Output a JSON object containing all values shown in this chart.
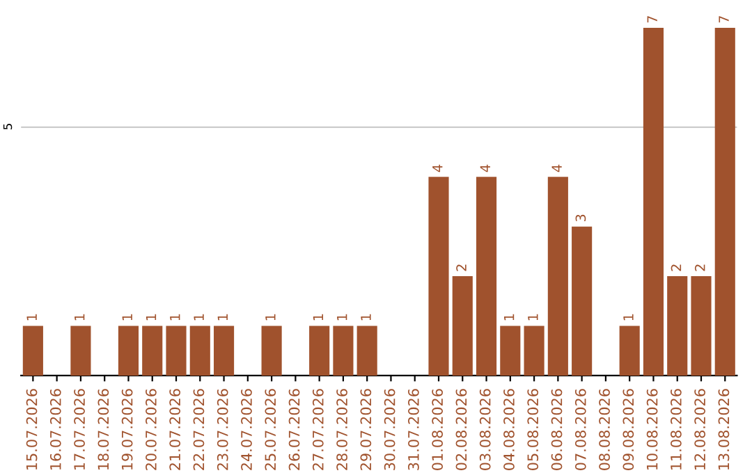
{
  "chart_data": {
    "type": "bar",
    "categories": [
      "15.07.2026",
      "16.07.2026",
      "17.07.2026",
      "18.07.2026",
      "19.07.2026",
      "20.07.2026",
      "21.07.2026",
      "22.07.2026",
      "23.07.2026",
      "24.07.2026",
      "25.07.2026",
      "26.07.2026",
      "27.07.2026",
      "28.07.2026",
      "29.07.2026",
      "30.07.2026",
      "31.07.2026",
      "01.08.2026",
      "02.08.2026",
      "03.08.2026",
      "04.08.2026",
      "05.08.2026",
      "06.08.2026",
      "07.08.2026",
      "08.08.2026",
      "09.08.2026",
      "10.08.2026",
      "11.08.2026",
      "12.08.2026",
      "13.08.2026"
    ],
    "values": [
      1,
      null,
      1,
      null,
      1,
      1,
      1,
      1,
      1,
      null,
      1,
      null,
      1,
      1,
      1,
      null,
      null,
      4,
      2,
      4,
      1,
      1,
      4,
      3,
      null,
      1,
      7,
      2,
      2,
      7
    ],
    "color": "#a0522d",
    "ylim": [
      0,
      7
    ],
    "yticks": [
      5
    ],
    "grid": "y",
    "data_labels": true,
    "legend": false
  }
}
